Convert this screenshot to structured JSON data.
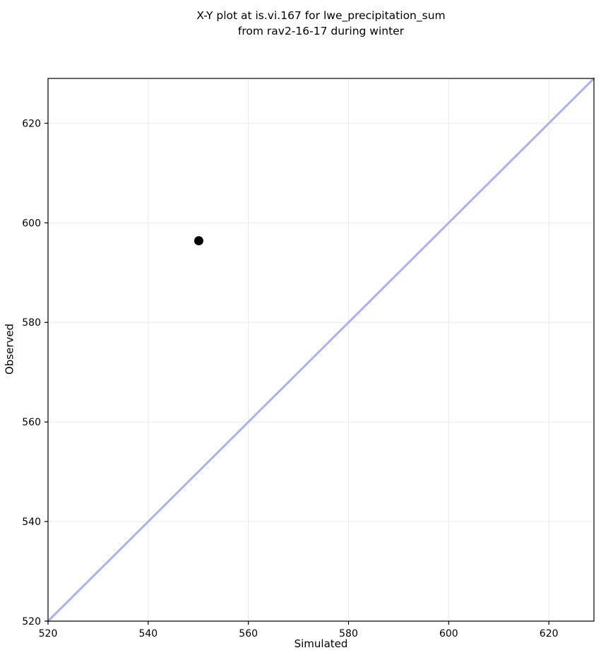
{
  "title": {
    "line1": "X-Y plot at is.vi.167 for lwe_precipitation_sum",
    "line2": "from rav2-16-17 during winter"
  },
  "chart_data": {
    "type": "scatter",
    "title": "X-Y plot at is.vi.167 for lwe_precipitation_sum from rav2-16-17 during winter",
    "xlabel": "Simulated",
    "ylabel": "Observed",
    "xlim": [
      520,
      629
    ],
    "ylim": [
      520,
      629
    ],
    "xticks": [
      520,
      540,
      560,
      580,
      600,
      620
    ],
    "yticks": [
      520,
      540,
      560,
      580,
      600,
      620
    ],
    "grid": true,
    "legend": "none",
    "scatter_points": [
      {
        "simulated": 550.1,
        "observed": 596.4
      }
    ],
    "identity_line": {
      "from": [
        520,
        520
      ],
      "to": [
        629,
        629
      ],
      "color": "#aeb0f2",
      "stroke_width": 3
    },
    "marker": {
      "color": "#000000",
      "radius": 6.5
    },
    "colors": {
      "grid": "#ededed",
      "spine": "#000000",
      "text": "#000000",
      "background": "#ffffff"
    }
  }
}
